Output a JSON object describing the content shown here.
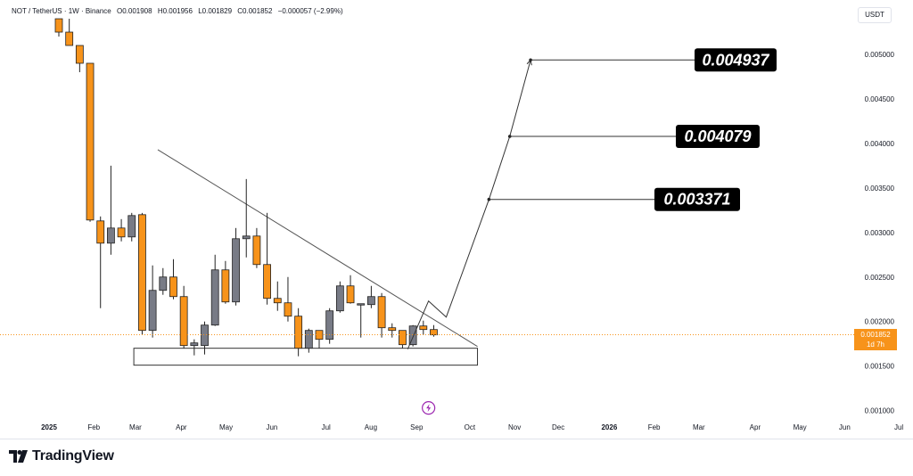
{
  "header": {
    "title": "NOT / TetherUS · 1W · Binance",
    "open": "O0.001908",
    "high": "H0.001956",
    "low": "L0.001829",
    "close": "C0.001852",
    "change": "−0.000057 (−2.99%)",
    "currency": "USDT"
  },
  "last_price": {
    "value": "0.001852",
    "countdown": "1d 7h"
  },
  "brand": {
    "name": "TradingView"
  },
  "colors": {
    "up": "#787b86",
    "down": "#f7931a",
    "label_bg": "#000000",
    "label_text": "#ffffff",
    "line": "#555555"
  },
  "chart_data": {
    "type": "candlestick",
    "pair": "NOT/USDT",
    "interval": "1W",
    "y_axis": {
      "min": 0.0009,
      "max": 0.0054,
      "ticks": [
        "0.005000",
        "0.004500",
        "0.004000",
        "0.003500",
        "0.003000",
        "0.002500",
        "0.002000",
        "0.001500",
        "0.001000"
      ]
    },
    "x_axis": {
      "ticks": [
        {
          "w": 0,
          "label": "2025",
          "bold": true
        },
        {
          "w": 4.3,
          "label": "Feb"
        },
        {
          "w": 8.3,
          "label": "Mar"
        },
        {
          "w": 12.7,
          "label": "Apr"
        },
        {
          "w": 17,
          "label": "May"
        },
        {
          "w": 21.4,
          "label": "Jun"
        },
        {
          "w": 26.6,
          "label": "Jul"
        },
        {
          "w": 30.9,
          "label": "Aug"
        },
        {
          "w": 35.3,
          "label": "Sep"
        },
        {
          "w": 40.4,
          "label": "Oct"
        },
        {
          "w": 44.7,
          "label": "Nov"
        },
        {
          "w": 48.9,
          "label": "Dec"
        },
        {
          "w": 53.8,
          "label": "2026",
          "bold": true
        },
        {
          "w": 58.1,
          "label": "Feb"
        },
        {
          "w": 62.4,
          "label": "Mar"
        },
        {
          "w": 67.8,
          "label": "Apr"
        },
        {
          "w": 72.1,
          "label": "May"
        },
        {
          "w": 76.4,
          "label": "Jun"
        },
        {
          "w": 81.6,
          "label": "Jul"
        }
      ]
    },
    "candles": [
      {
        "o": 0.0054,
        "h": 0.0054,
        "l": 0.0052,
        "c": 0.00525
      },
      {
        "o": 0.00525,
        "h": 0.0054,
        "l": 0.0051,
        "c": 0.0051
      },
      {
        "o": 0.0051,
        "h": 0.0051,
        "l": 0.0048,
        "c": 0.0049
      },
      {
        "o": 0.0049,
        "h": 0.0049,
        "l": 0.00312,
        "c": 0.00314
      },
      {
        "o": 0.00313,
        "h": 0.00318,
        "l": 0.00215,
        "c": 0.00288
      },
      {
        "o": 0.00288,
        "h": 0.00375,
        "l": 0.00275,
        "c": 0.00305
      },
      {
        "o": 0.00305,
        "h": 0.00315,
        "l": 0.0029,
        "c": 0.00295
      },
      {
        "o": 0.00295,
        "h": 0.00322,
        "l": 0.0029,
        "c": 0.00319
      },
      {
        "o": 0.0032,
        "h": 0.00322,
        "l": 0.00185,
        "c": 0.0019
      },
      {
        "o": 0.0019,
        "h": 0.00263,
        "l": 0.00182,
        "c": 0.00235
      },
      {
        "o": 0.00235,
        "h": 0.0026,
        "l": 0.0023,
        "c": 0.0025
      },
      {
        "o": 0.0025,
        "h": 0.0027,
        "l": 0.00225,
        "c": 0.00228
      },
      {
        "o": 0.00228,
        "h": 0.0024,
        "l": 0.0017,
        "c": 0.00173
      },
      {
        "o": 0.00173,
        "h": 0.0018,
        "l": 0.00162,
        "c": 0.00176
      },
      {
        "o": 0.00173,
        "h": 0.002,
        "l": 0.00163,
        "c": 0.00196
      },
      {
        "o": 0.00196,
        "h": 0.00275,
        "l": 0.00195,
        "c": 0.00258
      },
      {
        "o": 0.00258,
        "h": 0.00268,
        "l": 0.0022,
        "c": 0.00222
      },
      {
        "o": 0.00222,
        "h": 0.00305,
        "l": 0.00218,
        "c": 0.00293
      },
      {
        "o": 0.00293,
        "h": 0.0036,
        "l": 0.00272,
        "c": 0.00296
      },
      {
        "o": 0.00296,
        "h": 0.00305,
        "l": 0.0026,
        "c": 0.00264
      },
      {
        "o": 0.00264,
        "h": 0.00322,
        "l": 0.00219,
        "c": 0.00226
      },
      {
        "o": 0.00226,
        "h": 0.00245,
        "l": 0.00212,
        "c": 0.00221
      },
      {
        "o": 0.00221,
        "h": 0.0025,
        "l": 0.002,
        "c": 0.00206
      },
      {
        "o": 0.00206,
        "h": 0.00215,
        "l": 0.00161,
        "c": 0.0017
      },
      {
        "o": 0.0017,
        "h": 0.00192,
        "l": 0.00165,
        "c": 0.0019
      },
      {
        "o": 0.0019,
        "h": 0.0019,
        "l": 0.0017,
        "c": 0.0018
      },
      {
        "o": 0.0018,
        "h": 0.00215,
        "l": 0.00175,
        "c": 0.00212
      },
      {
        "o": 0.00212,
        "h": 0.00245,
        "l": 0.0021,
        "c": 0.0024
      },
      {
        "o": 0.0024,
        "h": 0.00252,
        "l": 0.0022,
        "c": 0.00221
      },
      {
        "o": 0.00219,
        "h": 0.0022,
        "l": 0.00182,
        "c": 0.0022
      },
      {
        "o": 0.00219,
        "h": 0.0024,
        "l": 0.00215,
        "c": 0.00228
      },
      {
        "o": 0.00228,
        "h": 0.00232,
        "l": 0.00182,
        "c": 0.00193
      },
      {
        "o": 0.00193,
        "h": 0.00198,
        "l": 0.00182,
        "c": 0.0019
      },
      {
        "o": 0.0019,
        "h": 0.0019,
        "l": 0.0017,
        "c": 0.00174
      },
      {
        "o": 0.00174,
        "h": 0.00196,
        "l": 0.00172,
        "c": 0.00195
      },
      {
        "o": 0.00195,
        "h": 0.00201,
        "l": 0.00185,
        "c": 0.00191
      },
      {
        "o": 0.00191,
        "h": 0.00196,
        "l": 0.00183,
        "c": 0.00185
      }
    ],
    "trendline": {
      "from": {
        "w": 9.5,
        "p": 0.00393
      },
      "to": {
        "w": 40.2,
        "p": 0.00172
      }
    },
    "support_box": {
      "w1": 7.2,
      "w2": 40.2,
      "p_top": 0.0017,
      "p_bottom": 0.00151
    },
    "projection_path": [
      {
        "w": 33.5,
        "p": 0.00169
      },
      {
        "w": 35.5,
        "p": 0.00223
      },
      {
        "w": 37.2,
        "p": 0.00205
      },
      {
        "w": 41.3,
        "p": 0.00337
      },
      {
        "w": 43.3,
        "p": 0.00408
      },
      {
        "w": 45.3,
        "p": 0.004937
      }
    ],
    "targets": [
      {
        "w": 41.3,
        "p": 0.003371,
        "label": "0.003371"
      },
      {
        "w": 43.3,
        "p": 0.004079,
        "label": "0.004079"
      },
      {
        "w": 45.3,
        "p": 0.004937,
        "label": "0.004937"
      }
    ],
    "last_price_line": 0.001852,
    "event_marker": {
      "w": 35.5,
      "p": 0.00103
    }
  }
}
